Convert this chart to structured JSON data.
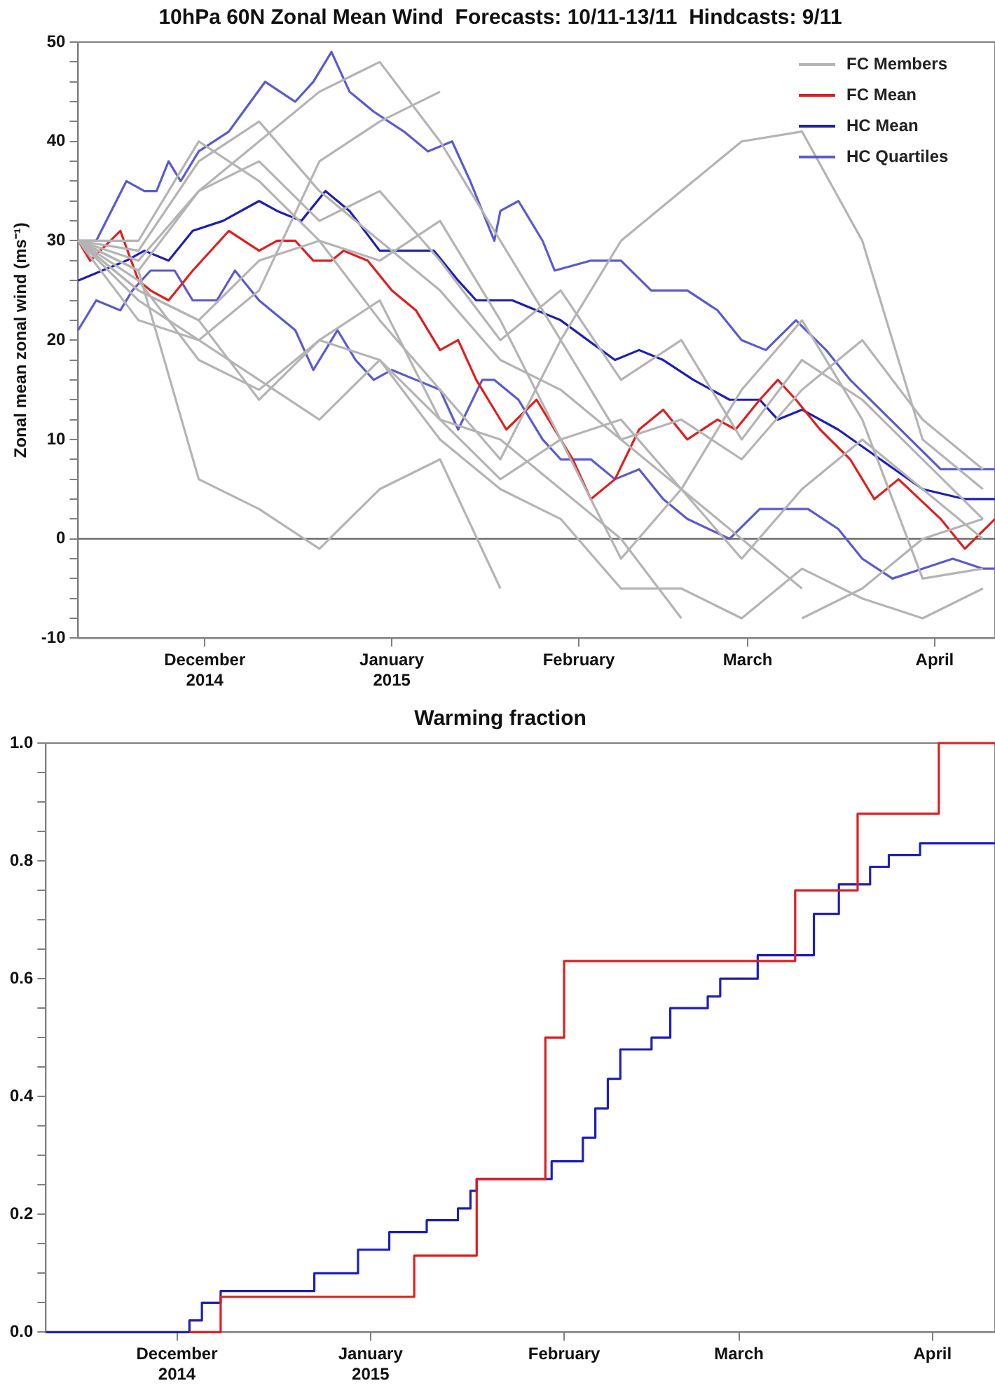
{
  "chart_data": [
    {
      "type": "line",
      "title": "10hPa 60N Zonal Mean Wind  Forecasts: 10/11-13/11  Hindcasts: 9/11",
      "ylabel": "Zonal mean zonal wind (ms⁻¹)",
      "x": [
        "2014-11-10",
        "2014-11-20",
        "2014-11-30",
        "2014-12-10",
        "2014-12-20",
        "2014-12-30",
        "2015-01-09",
        "2015-01-19",
        "2015-01-29",
        "2015-02-08",
        "2015-02-18",
        "2015-02-28",
        "2015-03-10",
        "2015-03-20",
        "2015-03-30",
        "2015-04-09"
      ],
      "series": [
        {
          "name": "FC Members",
          "color": "#b4b4b4",
          "values": [
            30,
            27,
            6,
            3,
            -1,
            5,
            8,
            -5,
            null,
            null,
            null,
            null,
            null,
            null,
            null,
            null
          ]
        },
        {
          "color": "#b4b4b4",
          "values": [
            30,
            25,
            22,
            28,
            30,
            22,
            15,
            8,
            20,
            30,
            35,
            40,
            41,
            30,
            10,
            5
          ]
        },
        {
          "color": "#b4b4b4",
          "values": [
            30,
            28,
            35,
            40,
            45,
            48,
            40,
            30,
            20,
            10,
            5,
            0,
            -5,
            null,
            null,
            null
          ]
        },
        {
          "color": "#b4b4b4",
          "values": [
            30,
            22,
            20,
            25,
            38,
            42,
            45,
            null,
            null,
            null,
            null,
            null,
            null,
            null,
            null,
            null
          ]
        },
        {
          "color": "#b4b4b4",
          "values": [
            30,
            29,
            38,
            42,
            35,
            30,
            25,
            18,
            15,
            10,
            12,
            8,
            15,
            20,
            12,
            7
          ]
        },
        {
          "color": "#b4b4b4",
          "values": [
            30,
            26,
            18,
            15,
            20,
            18,
            12,
            10,
            5,
            0,
            -8,
            null,
            -8,
            -5,
            0,
            2
          ]
        },
        {
          "color": "#b4b4b4",
          "values": [
            30,
            30,
            40,
            36,
            30,
            28,
            32,
            22,
            10,
            12,
            5,
            -2,
            5,
            10,
            5,
            0
          ]
        },
        {
          "color": "#b4b4b4",
          "values": [
            30,
            24,
            20,
            16,
            12,
            18,
            10,
            5,
            2,
            -5,
            -5,
            -8,
            -3,
            -6,
            -8,
            -5
          ]
        },
        {
          "color": "#b4b4b4",
          "values": [
            30,
            27,
            35,
            38,
            32,
            35,
            28,
            20,
            25,
            16,
            20,
            10,
            18,
            14,
            8,
            2
          ]
        },
        {
          "color": "#b4b4b4",
          "values": [
            30,
            25,
            22,
            14,
            20,
            24,
            12,
            6,
            10,
            -2,
            5,
            15,
            22,
            12,
            -4,
            -3
          ]
        },
        {
          "name": "FC Mean",
          "color": "#e01e1e",
          "x": [
            "2014-11-10",
            "2014-11-12",
            "2014-11-17",
            "2014-11-20",
            "2014-11-22",
            "2014-11-25",
            "2014-11-29",
            "2014-12-05",
            "2014-12-10",
            "2014-12-13",
            "2014-12-16",
            "2014-12-19",
            "2014-12-22",
            "2014-12-24",
            "2014-12-28",
            "2015-01-01",
            "2015-01-05",
            "2015-01-09",
            "2015-01-12",
            "2015-01-15",
            "2015-01-17",
            "2015-01-20",
            "2015-01-25",
            "2015-01-31",
            "2015-02-03",
            "2015-02-07",
            "2015-02-11",
            "2015-02-15",
            "2015-02-19",
            "2015-02-24",
            "2015-02-27",
            "2015-03-03",
            "2015-03-06",
            "2015-03-09",
            "2015-03-13",
            "2015-03-18",
            "2015-03-22",
            "2015-03-26",
            "2015-04-02",
            "2015-04-06",
            "2015-04-11"
          ],
          "values": [
            30,
            28,
            31,
            26,
            25,
            24,
            27,
            31,
            29,
            30,
            30,
            28,
            28,
            29,
            28,
            25,
            23,
            19,
            20,
            16,
            14,
            11,
            14,
            8,
            4,
            6,
            11,
            13,
            10,
            12,
            11,
            14,
            16,
            14,
            11,
            8,
            4,
            6,
            2,
            -1,
            2
          ]
        },
        {
          "name": "HC Mean",
          "color": "#1e1eb9",
          "x": [
            "2014-11-10",
            "2014-11-14",
            "2014-11-18",
            "2014-11-21",
            "2014-11-25",
            "2014-11-29",
            "2014-12-04",
            "2014-12-10",
            "2014-12-13",
            "2014-12-17",
            "2014-12-21",
            "2014-12-25",
            "2014-12-30",
            "2015-01-04",
            "2015-01-08",
            "2015-01-12",
            "2015-01-15",
            "2015-01-17",
            "2015-01-21",
            "2015-01-29",
            "2015-02-07",
            "2015-02-11",
            "2015-02-15",
            "2015-02-20",
            "2015-02-26",
            "2015-03-03",
            "2015-03-06",
            "2015-03-10",
            "2015-03-16",
            "2015-03-23",
            "2015-03-30",
            "2015-04-06",
            "2015-04-11"
          ],
          "values": [
            26,
            27,
            28,
            29,
            28,
            31,
            32,
            34,
            33,
            32,
            35,
            33,
            29,
            29,
            29,
            26,
            24,
            24,
            24,
            22,
            18,
            19,
            18,
            16,
            14,
            14,
            12,
            13,
            11,
            8,
            5,
            4,
            4
          ]
        },
        {
          "name": "HC Quartiles",
          "color": "#5a5ad2",
          "x": [
            "2014-11-10",
            "2014-11-13",
            "2014-11-18",
            "2014-11-21",
            "2014-11-23",
            "2014-11-25",
            "2014-11-27",
            "2014-11-30",
            "2014-12-05",
            "2014-12-11",
            "2014-12-16",
            "2014-12-19",
            "2014-12-22",
            "2014-12-25",
            "2014-12-29",
            "2015-01-03",
            "2015-01-07",
            "2015-01-11",
            "2015-01-14",
            "2015-01-18",
            "2015-01-19",
            "2015-01-22",
            "2015-01-26",
            "2015-01-28",
            "2015-02-03",
            "2015-02-08",
            "2015-02-13",
            "2015-02-19",
            "2015-02-24",
            "2015-02-28",
            "2015-03-04",
            "2015-03-09",
            "2015-03-14",
            "2015-03-18",
            "2015-03-23",
            "2015-03-28",
            "2015-04-02",
            "2015-04-06",
            "2015-04-11"
          ],
          "values": [
            30,
            30,
            36,
            35,
            35,
            38,
            36,
            39,
            41,
            46,
            44,
            46,
            49,
            45,
            43,
            41,
            39,
            40,
            36,
            30,
            33,
            34,
            30,
            27,
            28,
            28,
            25,
            25,
            23,
            20,
            19,
            22,
            19,
            16,
            13,
            10,
            7,
            7,
            7
          ]
        },
        {
          "color": "#5a5ad2",
          "x": [
            "2014-11-10",
            "2014-11-13",
            "2014-11-17",
            "2014-11-19",
            "2014-11-22",
            "2014-11-26",
            "2014-11-29",
            "2014-12-03",
            "2014-12-06",
            "2014-12-10",
            "2014-12-12",
            "2014-12-16",
            "2014-12-19",
            "2014-12-23",
            "2014-12-26",
            "2014-12-29",
            "2015-01-01",
            "2015-01-05",
            "2015-01-09",
            "2015-01-12",
            "2015-01-16",
            "2015-01-18",
            "2015-01-22",
            "2015-01-26",
            "2015-01-29",
            "2015-02-03",
            "2015-02-07",
            "2015-02-11",
            "2015-02-15",
            "2015-02-19",
            "2015-02-26",
            "2015-03-03",
            "2015-03-06",
            "2015-03-11",
            "2015-03-16",
            "2015-03-20",
            "2015-03-25",
            "2015-03-30",
            "2015-04-04",
            "2015-04-09",
            "2015-04-11"
          ],
          "values": [
            21,
            24,
            23,
            25,
            27,
            27,
            24,
            24,
            27,
            24,
            23,
            21,
            17,
            21,
            18,
            16,
            17,
            16,
            15,
            11,
            16,
            16,
            14,
            10,
            8,
            8,
            6,
            7,
            4,
            2,
            0,
            3,
            3,
            3,
            1,
            -2,
            -4,
            -3,
            -2,
            -3,
            -3
          ]
        }
      ],
      "xlim": [
        "2014-11-10",
        "2015-04-11"
      ],
      "xticks": [
        {
          "value": "2014-12-01",
          "label": "December\n2014"
        },
        {
          "value": "2015-01-01",
          "label": "January\n2015"
        },
        {
          "value": "2015-02-01",
          "label": "February"
        },
        {
          "value": "2015-03-01",
          "label": "March"
        },
        {
          "value": "2015-04-01",
          "label": "April"
        }
      ],
      "ylim": [
        -10,
        50
      ],
      "yticks": [
        -10,
        {
          "value": -8,
          "label": null
        },
        {
          "value": -6,
          "label": null
        },
        {
          "value": -4,
          "label": null
        },
        {
          "value": -2,
          "label": null
        },
        0,
        {
          "value": 2,
          "label": null
        },
        {
          "value": 4,
          "label": null
        },
        {
          "value": 6,
          "label": null
        },
        {
          "value": 8,
          "label": null
        },
        10,
        {
          "value": 12,
          "label": null
        },
        {
          "value": 14,
          "label": null
        },
        {
          "value": 16,
          "label": null
        },
        {
          "value": 18,
          "label": null
        },
        20,
        {
          "value": 22,
          "label": null
        },
        {
          "value": 24,
          "label": null
        },
        {
          "value": 26,
          "label": null
        },
        {
          "value": 28,
          "label": null
        },
        30,
        {
          "value": 32,
          "label": null
        },
        {
          "value": 34,
          "label": null
        },
        {
          "value": 36,
          "label": null
        },
        {
          "value": 38,
          "label": null
        },
        40,
        {
          "value": 42,
          "label": null
        },
        {
          "value": 44,
          "label": null
        },
        {
          "value": 46,
          "label": null
        },
        {
          "value": 48,
          "label": null
        },
        50
      ],
      "ref_lines": [
        {
          "axis": "y",
          "value": 0,
          "color": "#606060"
        }
      ],
      "legend": "top right"
    },
    {
      "type": "step",
      "title": "Warming fraction",
      "series": [
        {
          "color": "#e01e1e",
          "x": [
            "2014-12-03",
            "2014-12-08",
            "2015-01-08",
            "2015-01-18",
            "2015-01-29",
            "2015-02-01",
            "2015-03-10",
            "2015-03-20",
            "2015-04-02",
            "2015-04-11"
          ],
          "values": [
            0,
            0.06,
            0.13,
            0.26,
            0.5,
            0.63,
            0.75,
            0.88,
            1,
            1
          ]
        },
        {
          "color": "#1e1eb9",
          "x": [
            "2014-11-10",
            "2014-12-03",
            "2014-12-05",
            "2014-12-08",
            "2014-12-23",
            "2014-12-30",
            "2015-01-04",
            "2015-01-10",
            "2015-01-15",
            "2015-01-17",
            "2015-01-18",
            "2015-01-30",
            "2015-02-04",
            "2015-02-06",
            "2015-02-08",
            "2015-02-10",
            "2015-02-15",
            "2015-02-18",
            "2015-02-24",
            "2015-02-26",
            "2015-03-04",
            "2015-03-13",
            "2015-03-17",
            "2015-03-22",
            "2015-03-25",
            "2015-03-30",
            "2015-04-11"
          ],
          "values": [
            0,
            0.02,
            0.05,
            0.07,
            0.1,
            0.14,
            0.17,
            0.19,
            0.21,
            0.24,
            0.26,
            0.29,
            0.33,
            0.38,
            0.43,
            0.48,
            0.5,
            0.55,
            0.57,
            0.6,
            0.64,
            0.71,
            0.76,
            0.79,
            0.81,
            0.83,
            0.83
          ]
        }
      ],
      "xlim": [
        "2014-11-10",
        "2015-04-11"
      ],
      "xticks": [
        {
          "value": "2014-12-01",
          "label": "December\n2014"
        },
        {
          "value": "2015-01-01",
          "label": "January\n2015"
        },
        {
          "value": "2015-02-01",
          "label": "February"
        },
        {
          "value": "2015-03-01",
          "label": "March"
        },
        {
          "value": "2015-04-01",
          "label": "April"
        }
      ],
      "ylim": [
        0,
        1
      ],
      "yticks": [
        {
          "value": 0,
          "label": "0.0"
        },
        {
          "value": 0.05,
          "label": null
        },
        {
          "value": 0.1,
          "label": null
        },
        {
          "value": 0.15,
          "label": null
        },
        {
          "value": 0.2,
          "label": "0.2"
        },
        {
          "value": 0.25,
          "label": null
        },
        {
          "value": 0.3,
          "label": null
        },
        {
          "value": 0.35,
          "label": null
        },
        {
          "value": 0.4,
          "label": "0.4"
        },
        {
          "value": 0.45,
          "label": null
        },
        {
          "value": 0.5,
          "label": null
        },
        {
          "value": 0.55,
          "label": null
        },
        {
          "value": 0.6,
          "label": "0.6"
        },
        {
          "value": 0.65,
          "label": null
        },
        {
          "value": 0.7,
          "label": null
        },
        {
          "value": 0.75,
          "label": null
        },
        {
          "value": 0.8,
          "label": "0.8"
        },
        {
          "value": 0.85,
          "label": null
        },
        {
          "value": 0.9,
          "label": null
        },
        {
          "value": 0.95,
          "label": null
        },
        {
          "value": 1,
          "label": "1.0"
        }
      ]
    }
  ]
}
